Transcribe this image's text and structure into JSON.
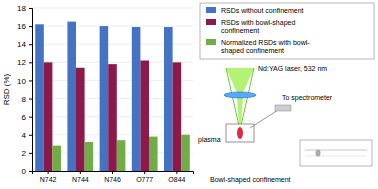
{
  "chart_data": {
    "type": "bar",
    "categories": [
      "N742",
      "N744",
      "N746",
      "O777",
      "O844"
    ],
    "series": [
      {
        "name": "RSDs without confinement",
        "color": "#4472C4",
        "values": [
          16.2,
          16.5,
          16.0,
          15.9,
          15.9
        ]
      },
      {
        "name": "RSDs with bowl-shaped\nconfinement",
        "color": "#8B1A4A",
        "values": [
          12.0,
          11.4,
          11.8,
          12.2,
          12.0
        ]
      },
      {
        "name": "Normalized RSDs with bowl-\nshaped confinement",
        "color": "#70AD47",
        "values": [
          2.8,
          3.2,
          3.4,
          3.8,
          4.0
        ]
      }
    ],
    "ylabel": "RSD (%)",
    "ylim": [
      0,
      18
    ],
    "yticks": [
      0,
      2,
      4,
      6,
      8,
      10,
      12,
      14,
      16,
      18
    ],
    "grid": true,
    "legend": "right",
    "annotations": [
      "Nd:YAG laser, 532 nm",
      "To spectrometer",
      "plasma",
      "Bowl-shaped confinement"
    ]
  }
}
